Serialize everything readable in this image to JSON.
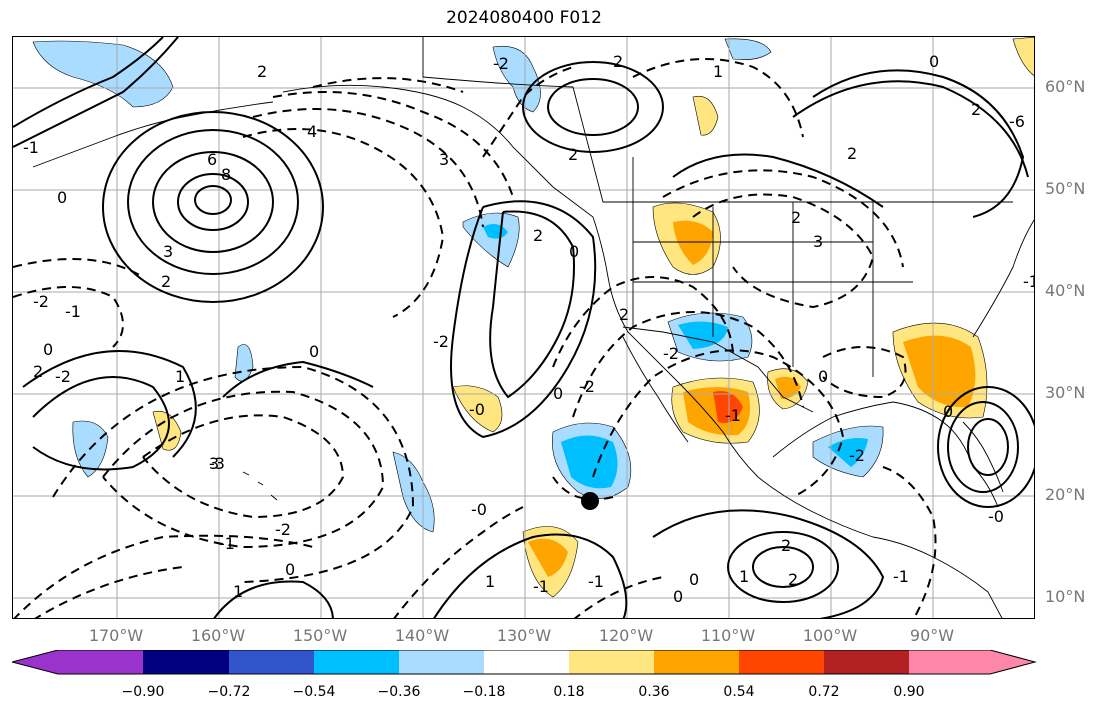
{
  "title": "2024080400 F012",
  "lat_labels": [
    "60°N",
    "50°N",
    "40°N",
    "30°N",
    "20°N",
    "10°N"
  ],
  "lon_labels": [
    "170°W",
    "160°W",
    "150°W",
    "140°W",
    "130°W",
    "120°W",
    "110°W",
    "100°W",
    "90°W"
  ],
  "colorbar": {
    "colors": [
      "#9933cc",
      "#000080",
      "#3355cc",
      "#00bfff",
      "#aadcff",
      "#ffffff",
      "#ffe680",
      "#ffa500",
      "#ff4500",
      "#b22222",
      "#ff88aa"
    ],
    "tick_labels": [
      "−0.90",
      "−0.72",
      "−0.54",
      "−0.36",
      "−0.18",
      "0.18",
      "0.36",
      "0.54",
      "0.72",
      "0.90"
    ]
  },
  "contour_labels": [
    "6",
    "8",
    "4",
    "3",
    "2",
    "0",
    "-1",
    "-2",
    "0",
    "-2",
    "1",
    "2",
    "3",
    "0",
    "-1",
    "-2",
    "0",
    "2",
    "3",
    "0",
    "-0",
    "1",
    "2",
    "-2",
    "2",
    "2",
    "3",
    "2",
    "1",
    "0",
    "-2",
    "-1",
    "-3",
    "-2",
    "-1",
    "0",
    "-1",
    "2",
    "0",
    "1",
    "0",
    "-0",
    "2",
    "-1",
    "1",
    "2",
    "-6",
    "0",
    "0",
    "-0",
    "-2",
    "-2",
    "2",
    "-1",
    "2",
    "-1"
  ]
}
